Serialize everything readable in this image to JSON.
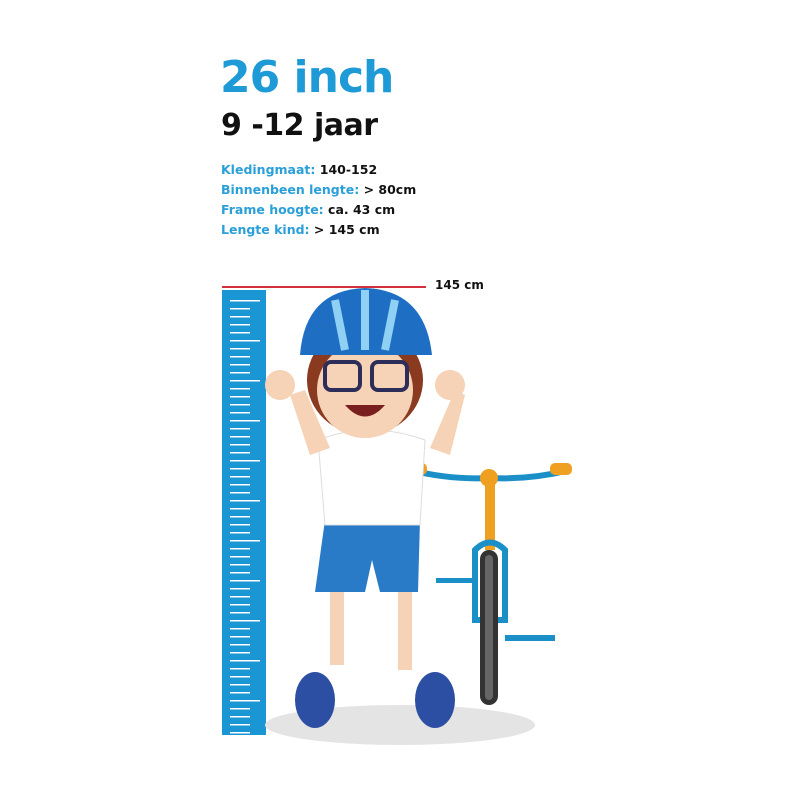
{
  "title": "26 inch",
  "subtitle": "9 -12 jaar",
  "specs": [
    {
      "label": "Kledingmaat:",
      "value": "140-152"
    },
    {
      "label": "Binnenbeen lengte:",
      "value": "> 80cm"
    },
    {
      "label": "Frame hoogte:",
      "value": "ca. 43 cm"
    },
    {
      "label": "Lengte kind:",
      "value": "> 145 cm"
    }
  ],
  "height_marker": "145 cm",
  "colors": {
    "accent": "#1e9ad6",
    "marker": "#d6303c",
    "bike_frame": "#1b8fc7",
    "bike_handle": "#f0a020"
  }
}
